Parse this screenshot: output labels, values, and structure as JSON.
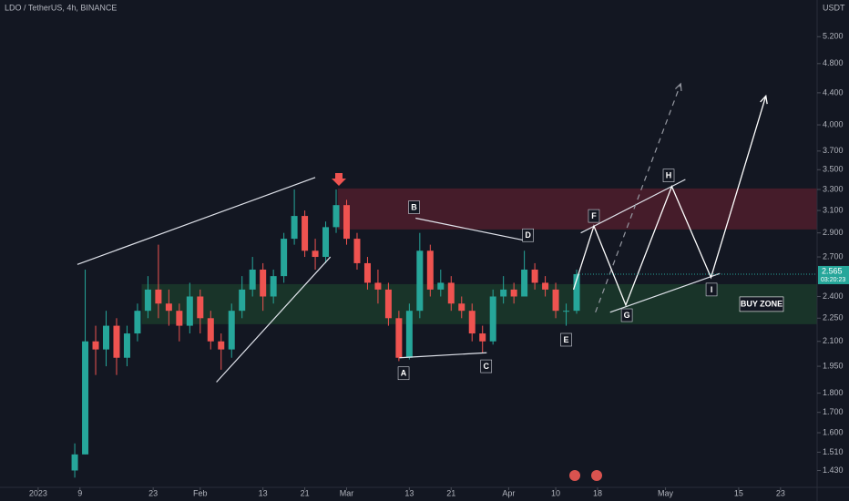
{
  "chart_data": {
    "type": "candlestick",
    "title": "LDO / TetherUS, 4h, BINANCE",
    "y_unit": "USDT",
    "log_scale": true,
    "xlim": [
      -7.3,
      149
    ],
    "ylim": [
      1.36,
      5.8
    ],
    "xticks": [
      {
        "value": 0,
        "label": "2023"
      },
      {
        "value": 8,
        "label": "9"
      },
      {
        "value": 22,
        "label": "23"
      },
      {
        "value": 31,
        "label": "Feb"
      },
      {
        "value": 43,
        "label": "13"
      },
      {
        "value": 51,
        "label": "21"
      },
      {
        "value": 59,
        "label": "Mar"
      },
      {
        "value": 71,
        "label": "13"
      },
      {
        "value": 79,
        "label": "21"
      },
      {
        "value": 90,
        "label": "Apr"
      },
      {
        "value": 99,
        "label": "10"
      },
      {
        "value": 107,
        "label": "18"
      },
      {
        "value": 120,
        "label": "May"
      },
      {
        "value": 134,
        "label": "15"
      },
      {
        "value": 142,
        "label": "23"
      }
    ],
    "yticks": [
      {
        "value": 5.2,
        "label": "5.200"
      },
      {
        "value": 4.8,
        "label": "4.800"
      },
      {
        "value": 4.4,
        "label": "4.400"
      },
      {
        "value": 4.0,
        "label": "4.000"
      },
      {
        "value": 3.7,
        "label": "3.700"
      },
      {
        "value": 3.5,
        "label": "3.500"
      },
      {
        "value": 3.3,
        "label": "3.300"
      },
      {
        "value": 3.1,
        "label": "3.100"
      },
      {
        "value": 2.9,
        "label": "2.900"
      },
      {
        "value": 2.7,
        "label": "2.700"
      },
      {
        "value": 2.4,
        "label": "2.400"
      },
      {
        "value": 2.25,
        "label": "2.250"
      },
      {
        "value": 2.1,
        "label": "2.100"
      },
      {
        "value": 1.95,
        "label": "1.950"
      },
      {
        "value": 1.8,
        "label": "1.800"
      },
      {
        "value": 1.7,
        "label": "1.700"
      },
      {
        "value": 1.6,
        "label": "1.600"
      },
      {
        "value": 1.51,
        "label": "1.510"
      },
      {
        "value": 1.43,
        "label": "1.430"
      }
    ],
    "last_price": {
      "value": 2.565,
      "label": "2.565"
    },
    "countdown": "03:20:23",
    "up_color": "#26a69a",
    "down_color": "#ef5350",
    "x": [
      7,
      9,
      11,
      13,
      15,
      17,
      19,
      21,
      23,
      25,
      27,
      29,
      31,
      33,
      35,
      37,
      39,
      41,
      43,
      45,
      47,
      49,
      51,
      53,
      55,
      57,
      59,
      61,
      63,
      65,
      67,
      69,
      71,
      73,
      75,
      77,
      79,
      81,
      83,
      85,
      87,
      89,
      91,
      93,
      95,
      97,
      99,
      101,
      103
    ],
    "open": [
      1.43,
      1.5,
      2.1,
      2.05,
      2.2,
      2.0,
      2.15,
      2.3,
      2.45,
      2.35,
      2.3,
      2.2,
      2.4,
      2.25,
      2.1,
      2.05,
      2.3,
      2.45,
      2.6,
      2.4,
      2.55,
      2.85,
      3.05,
      2.75,
      2.7,
      2.95,
      3.15,
      2.85,
      2.65,
      2.5,
      2.45,
      2.25,
      2.0,
      2.3,
      2.75,
      2.45,
      2.5,
      2.35,
      2.3,
      2.15,
      2.1,
      2.4,
      2.45,
      2.4,
      2.6,
      2.5,
      2.45,
      2.3,
      2.3
    ],
    "high": [
      1.55,
      2.6,
      2.2,
      2.3,
      2.25,
      2.2,
      2.35,
      2.55,
      2.8,
      2.45,
      2.35,
      2.5,
      2.45,
      2.3,
      2.15,
      2.35,
      2.55,
      2.7,
      2.65,
      2.6,
      2.9,
      3.3,
      3.1,
      2.85,
      3.0,
      3.3,
      3.2,
      2.9,
      2.7,
      2.6,
      2.5,
      2.3,
      2.35,
      2.9,
      2.8,
      2.6,
      2.55,
      2.4,
      2.35,
      2.2,
      2.45,
      2.55,
      2.5,
      2.75,
      2.65,
      2.55,
      2.5,
      2.35,
      2.6
    ],
    "low": [
      1.4,
      1.5,
      1.9,
      1.95,
      1.9,
      1.95,
      2.1,
      2.25,
      2.25,
      2.2,
      2.1,
      2.15,
      2.15,
      2.05,
      1.93,
      2.0,
      2.25,
      2.4,
      2.3,
      2.35,
      2.5,
      2.8,
      2.7,
      2.6,
      2.65,
      2.9,
      2.8,
      2.6,
      2.45,
      2.35,
      2.2,
      1.98,
      1.99,
      2.25,
      2.4,
      2.4,
      2.3,
      2.25,
      2.1,
      2.03,
      2.08,
      2.35,
      2.35,
      2.4,
      2.45,
      2.4,
      2.25,
      2.2,
      2.28
    ],
    "close": [
      1.5,
      2.1,
      2.05,
      2.2,
      2.0,
      2.15,
      2.3,
      2.45,
      2.35,
      2.3,
      2.2,
      2.4,
      2.25,
      2.1,
      2.05,
      2.3,
      2.45,
      2.6,
      2.4,
      2.55,
      2.85,
      3.05,
      2.75,
      2.7,
      2.95,
      3.15,
      2.85,
      2.65,
      2.5,
      2.45,
      2.25,
      2.0,
      2.3,
      2.75,
      2.45,
      2.5,
      2.35,
      2.3,
      2.15,
      2.1,
      2.4,
      2.45,
      2.4,
      2.6,
      2.5,
      2.45,
      2.3,
      2.3,
      2.565
    ],
    "zones": [
      {
        "x": 57.3,
        "top": 3.31,
        "bottom": 2.93,
        "color": "rgba(178,40,60,0.32)"
      },
      {
        "x": 19.8,
        "top": 2.49,
        "bottom": 2.21,
        "color": "rgba(40,120,60,0.30)",
        "label": "BUY ZONE"
      }
    ],
    "trendlines": [
      {
        "x": [
          7.5,
          53
        ],
        "y": [
          2.64,
          3.42
        ]
      },
      {
        "x": [
          34.1,
          55.9
        ],
        "y": [
          1.86,
          2.7
        ]
      },
      {
        "x": [
          72.2,
          93.7
        ],
        "y": [
          3.03,
          2.83
        ]
      },
      {
        "x": [
          69.1,
          85.8
        ],
        "y": [
          2.0,
          2.03
        ]
      },
      {
        "x": [
          103.8,
          123.8
        ],
        "y": [
          2.9,
          3.4
        ]
      },
      {
        "x": [
          109.4,
          130.4
        ],
        "y": [
          2.29,
          2.57
        ]
      },
      {
        "x": [
          106.6,
          122.9
        ],
        "y": [
          2.29,
          4.52
        ],
        "dashed": true
      }
    ],
    "projection": {
      "x": [
        102.4,
        106.3,
        112.4,
        121.2,
        128.7,
        139.2
      ],
      "y": [
        2.45,
        2.96,
        2.34,
        3.33,
        2.54,
        4.36
      ]
    },
    "annotations": [
      {
        "text": "A",
        "x": 69.9,
        "y": 1.91
      },
      {
        "text": "B",
        "x": 71.9,
        "y": 3.13
      },
      {
        "text": "C",
        "x": 85.7,
        "y": 1.95
      },
      {
        "text": "D",
        "x": 93.7,
        "y": 2.88
      },
      {
        "text": "E",
        "x": 101.0,
        "y": 2.11
      },
      {
        "text": "F",
        "x": 106.3,
        "y": 3.05
      },
      {
        "text": "G",
        "x": 112.6,
        "y": 2.27
      },
      {
        "text": "H",
        "x": 120.6,
        "y": 3.44
      },
      {
        "text": "I",
        "x": 128.8,
        "y": 2.45
      }
    ]
  }
}
